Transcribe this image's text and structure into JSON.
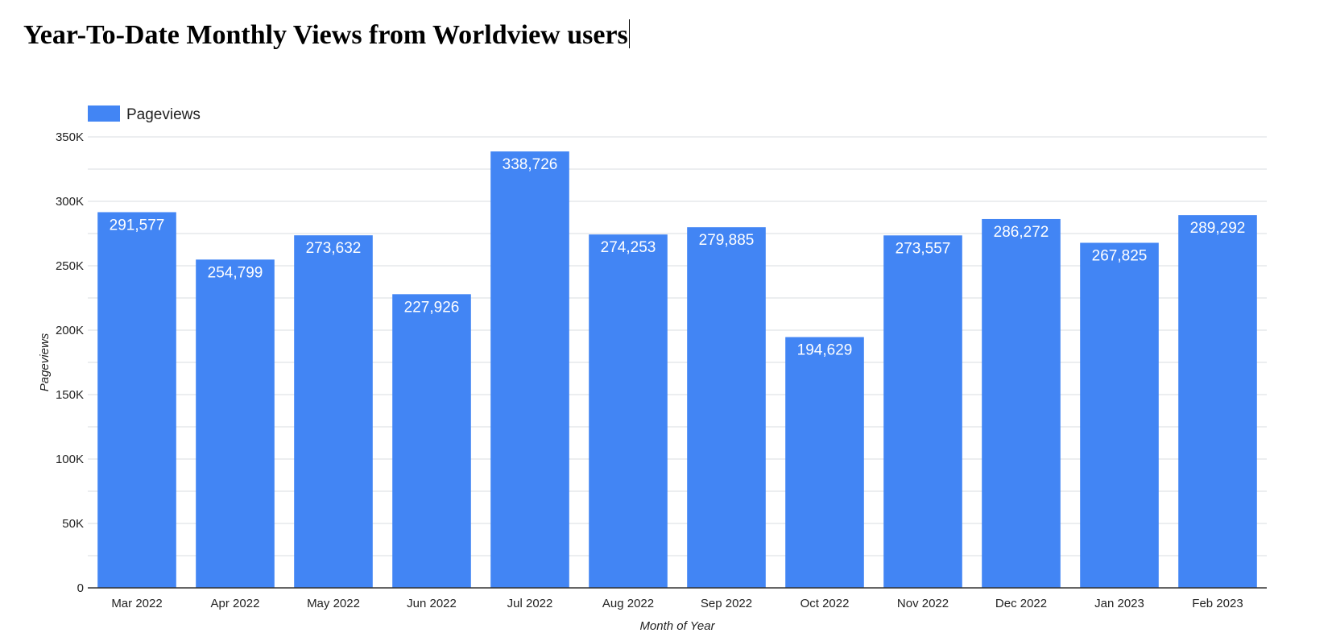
{
  "chart_data": {
    "type": "bar",
    "title": "Year-To-Date Monthly Views from Worldview users",
    "xlabel": "Month of Year",
    "ylabel": "Pageviews",
    "categories": [
      "Mar 2022",
      "Apr 2022",
      "May 2022",
      "Jun 2022",
      "Jul 2022",
      "Aug 2022",
      "Sep 2022",
      "Oct 2022",
      "Nov 2022",
      "Dec 2022",
      "Jan 2023",
      "Feb 2023"
    ],
    "series": [
      {
        "name": "Pageviews",
        "values": [
          291577,
          254799,
          273632,
          227926,
          338726,
          274253,
          279885,
          194629,
          273557,
          286272,
          267825,
          289292
        ],
        "labels": [
          "291,577",
          "254,799",
          "273,632",
          "227,926",
          "338,726",
          "274,253",
          "279,885",
          "194,629",
          "273,557",
          "286,272",
          "267,825",
          "289,292"
        ]
      }
    ],
    "ylim": [
      0,
      350000
    ],
    "yticks": [
      0,
      50000,
      100000,
      150000,
      200000,
      250000,
      300000,
      350000
    ],
    "ytick_labels": [
      "0",
      "50K",
      "100K",
      "150K",
      "200K",
      "250K",
      "300K",
      "350K"
    ],
    "grid": true,
    "legend_position": "top-left",
    "color": "#4285F4"
  }
}
